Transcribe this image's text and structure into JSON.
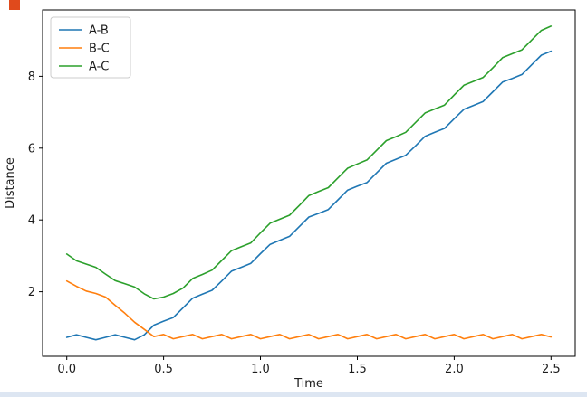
{
  "figure": {
    "background": "#ffffff",
    "artifact_color": "#e04a1c",
    "footer_color": "#dde6f2"
  },
  "chart_data": {
    "type": "line",
    "title": "",
    "xlabel": "Time",
    "ylabel": "Distance",
    "grid": false,
    "legend_position": "upper left",
    "xlim": [
      -0.125,
      2.625
    ],
    "ylim": [
      0.2,
      9.85
    ],
    "xticks": [
      {
        "value": 0.0,
        "label": "0.0"
      },
      {
        "value": 0.5,
        "label": "0.5"
      },
      {
        "value": 1.0,
        "label": "1.0"
      },
      {
        "value": 1.5,
        "label": "1.5"
      },
      {
        "value": 2.0,
        "label": "2.0"
      },
      {
        "value": 2.5,
        "label": "2.5"
      }
    ],
    "yticks": [
      {
        "value": 2,
        "label": "2"
      },
      {
        "value": 4,
        "label": "4"
      },
      {
        "value": 6,
        "label": "6"
      },
      {
        "value": 8,
        "label": "8"
      }
    ],
    "x": [
      0,
      0.05,
      0.1,
      0.15,
      0.2,
      0.25,
      0.3,
      0.35,
      0.4,
      0.45,
      0.5,
      0.55,
      0.6,
      0.65,
      0.7,
      0.75,
      0.8,
      0.85,
      0.9,
      0.95,
      1,
      1.05,
      1.1,
      1.15,
      1.2,
      1.25,
      1.3,
      1.35,
      1.4,
      1.45,
      1.5,
      1.55,
      1.6,
      1.65,
      1.7,
      1.75,
      1.8,
      1.85,
      1.9,
      1.95,
      2,
      2.05,
      2.1,
      2.15,
      2.2,
      2.25,
      2.3,
      2.35,
      2.4,
      2.45,
      2.5
    ],
    "series": [
      {
        "name": "A-B",
        "color": "#1f77b4",
        "values": [
          0.73,
          0.8,
          0.73,
          0.66,
          0.73,
          0.8,
          0.73,
          0.66,
          0.8,
          1.07,
          1.18,
          1.28,
          1.55,
          1.82,
          1.93,
          2.04,
          2.3,
          2.57,
          2.68,
          2.79,
          3.06,
          3.32,
          3.43,
          3.54,
          3.81,
          4.08,
          4.18,
          4.29,
          4.56,
          4.83,
          4.94,
          5.04,
          5.31,
          5.58,
          5.69,
          5.8,
          6.06,
          6.33,
          6.44,
          6.55,
          6.82,
          7.08,
          7.19,
          7.3,
          7.57,
          7.84,
          7.94,
          8.05,
          8.32,
          8.59,
          8.7
        ]
      },
      {
        "name": "B-C",
        "color": "#ff7f0e",
        "values": [
          2.3,
          2.15,
          2.02,
          1.95,
          1.85,
          1.62,
          1.4,
          1.15,
          0.95,
          0.75,
          0.81,
          0.69,
          0.75,
          0.81,
          0.69,
          0.75,
          0.81,
          0.69,
          0.75,
          0.81,
          0.69,
          0.75,
          0.81,
          0.69,
          0.75,
          0.81,
          0.69,
          0.75,
          0.81,
          0.69,
          0.75,
          0.81,
          0.69,
          0.75,
          0.81,
          0.69,
          0.75,
          0.81,
          0.69,
          0.75,
          0.81,
          0.69,
          0.75,
          0.81,
          0.69,
          0.75,
          0.81,
          0.69,
          0.75,
          0.81,
          0.74
        ]
      },
      {
        "name": "A-C",
        "color": "#2ca02c",
        "values": [
          3.05,
          2.86,
          2.77,
          2.68,
          2.49,
          2.31,
          2.22,
          2.13,
          1.94,
          1.8,
          1.85,
          1.95,
          2.1,
          2.37,
          2.48,
          2.6,
          2.87,
          3.14,
          3.25,
          3.36,
          3.64,
          3.91,
          4.02,
          4.13,
          4.4,
          4.68,
          4.79,
          4.9,
          5.17,
          5.44,
          5.56,
          5.67,
          5.94,
          6.21,
          6.32,
          6.44,
          6.71,
          6.98,
          7.09,
          7.2,
          7.48,
          7.75,
          7.86,
          7.97,
          8.24,
          8.52,
          8.63,
          8.74,
          9.01,
          9.28,
          9.4
        ]
      }
    ]
  }
}
